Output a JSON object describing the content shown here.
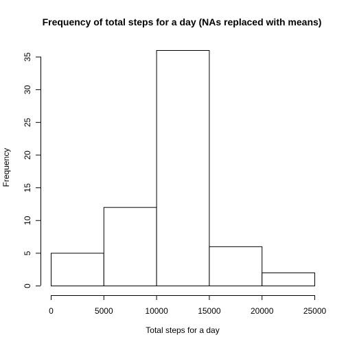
{
  "chart_data": {
    "type": "bar",
    "title": "Frequency of total steps for a day (NAs replaced with means)",
    "xlabel": "Total steps for a day",
    "ylabel": "Frequency",
    "bins": [
      {
        "from": 0,
        "to": 5000,
        "count": 5
      },
      {
        "from": 5000,
        "to": 10000,
        "count": 12
      },
      {
        "from": 10000,
        "to": 15000,
        "count": 36
      },
      {
        "from": 15000,
        "to": 20000,
        "count": 6
      },
      {
        "from": 20000,
        "to": 25000,
        "count": 2
      }
    ],
    "xlim": [
      0,
      25000
    ],
    "ylim": [
      0,
      36
    ],
    "xticks": [
      "0",
      "5000",
      "10000",
      "15000",
      "20000",
      "25000"
    ],
    "yticks": [
      "0",
      "5",
      "10",
      "15",
      "20",
      "25",
      "30",
      "35"
    ],
    "grid": false
  }
}
